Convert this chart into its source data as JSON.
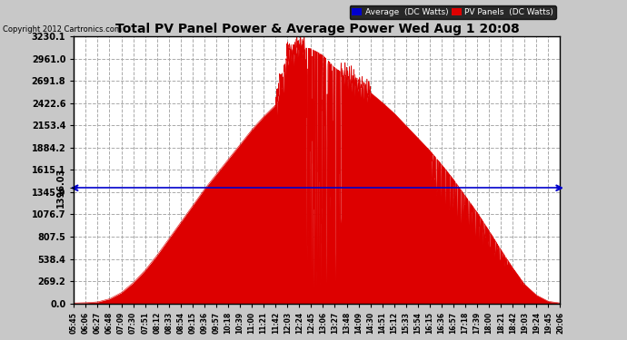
{
  "title": "Total PV Panel Power & Average Power Wed Aug 1 20:08",
  "copyright": "Copyright 2012 Cartronics.com",
  "average_value": 1396.03,
  "y_max": 3230.1,
  "y_min": 0.0,
  "y_ticks_right": [
    0.0,
    269.2,
    538.4,
    807.5,
    1076.7,
    1345.9,
    1615.1,
    1884.2,
    2153.4,
    2422.6,
    2691.8,
    2961.0,
    3230.1
  ],
  "y_ticks_left": [
    1396.03
  ],
  "x_tick_labels": [
    "05:45",
    "06:06",
    "06:27",
    "06:48",
    "07:09",
    "07:30",
    "07:51",
    "08:12",
    "08:33",
    "08:54",
    "09:15",
    "09:36",
    "09:57",
    "10:18",
    "10:39",
    "11:00",
    "11:21",
    "11:42",
    "12:03",
    "12:24",
    "12:45",
    "13:06",
    "13:27",
    "13:48",
    "14:09",
    "14:30",
    "14:51",
    "15:12",
    "15:33",
    "15:54",
    "16:15",
    "16:36",
    "16:57",
    "17:18",
    "17:39",
    "18:00",
    "18:21",
    "18:42",
    "19:03",
    "19:24",
    "19:45",
    "20:06"
  ],
  "background_color": "#c8c8c8",
  "plot_bg_color": "#ffffff",
  "fill_color": "#dd0000",
  "average_line_color": "#0000cc",
  "grid_color": "#aaaaaa",
  "title_color": "#000000",
  "legend_avg_bg": "#0000cc",
  "legend_pv_bg": "#dd0000",
  "legend_text_color": "#ffffff",
  "pv_data": [
    5,
    8,
    18,
    55,
    130,
    250,
    400,
    580,
    780,
    980,
    1180,
    1380,
    1560,
    1740,
    1920,
    2100,
    2260,
    2400,
    2980,
    3100,
    3080,
    3000,
    2850,
    2750,
    2650,
    2550,
    2430,
    2300,
    2150,
    2000,
    1850,
    1680,
    1500,
    1300,
    1100,
    880,
    650,
    430,
    230,
    100,
    25,
    5
  ]
}
